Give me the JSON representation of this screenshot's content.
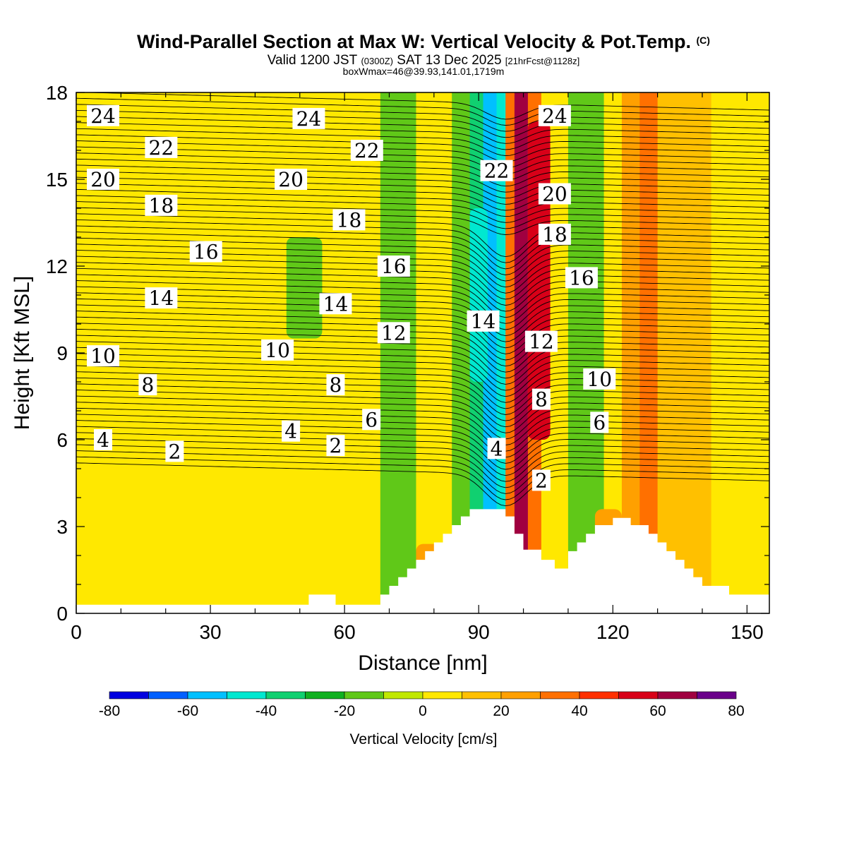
{
  "title": {
    "main": "Wind-Parallel Section at Max W: Vertical Velocity & Pot.Temp.",
    "copyright": "(C)",
    "valid_a": "Valid 1200 JST",
    "valid_utc": "(0300Z)",
    "valid_b": "SAT 13 Dec 2025",
    "forecast": "[21hrFcst@1128z]",
    "box": "boxWmax=46@39.93,141.01,1719m"
  },
  "chart_data": {
    "type": "heatmap",
    "title": "Wind-Parallel Section at Max W: Vertical Velocity & Pot.Temp.",
    "xlabel": "Distance [nm]",
    "ylabel": "Height [Kft MSL]",
    "xlim": [
      0,
      155
    ],
    "ylim": [
      0,
      18
    ],
    "xticks": [
      "0",
      "30",
      "60",
      "90",
      "120",
      "150"
    ],
    "yticks": [
      "0",
      "3",
      "6",
      "9",
      "12",
      "15",
      "18"
    ],
    "colorbar": {
      "label": "Vertical Velocity [cm/s]",
      "ticks": [
        "-80",
        "-60",
        "-40",
        "-20",
        "0",
        "20",
        "40",
        "60",
        "80"
      ],
      "bins": [
        -80,
        -70,
        -60,
        -50,
        -40,
        -30,
        -20,
        -10,
        0,
        10,
        20,
        30,
        40,
        50,
        60,
        70,
        80
      ],
      "colors": [
        "#0000e0",
        "#0060ff",
        "#00c0ff",
        "#00e8d0",
        "#10d070",
        "#10b020",
        "#60c818",
        "#c0e800",
        "#ffe800",
        "#ffc000",
        "#ffa000",
        "#ff7000",
        "#ff3000",
        "#d80018",
        "#a00040",
        "#6a008a"
      ]
    },
    "bands": [
      {
        "x": [
          0,
          24
        ],
        "w": 5
      },
      {
        "x": [
          24,
          38
        ],
        "w": 8
      },
      {
        "x": [
          38,
          48
        ],
        "w": 0
      },
      {
        "x": [
          48,
          58
        ],
        "w": 2
      },
      {
        "x": [
          58,
          68
        ],
        "w": 5
      },
      {
        "x": [
          68,
          76
        ],
        "w": -12
      },
      {
        "x": [
          76,
          84
        ],
        "w": 3
      },
      {
        "x": [
          84,
          88
        ],
        "w": -15
      },
      {
        "x": [
          88,
          91
        ],
        "w": -32
      },
      {
        "x": [
          91,
          94
        ],
        "w": -55
      },
      {
        "x": [
          94,
          96
        ],
        "w": -42
      },
      {
        "x": [
          96,
          98
        ],
        "w": 35
      },
      {
        "x": [
          98,
          101
        ],
        "w": 65
      },
      {
        "x": [
          101,
          104
        ],
        "w": 35
      },
      {
        "x": [
          104,
          110
        ],
        "w": 5
      },
      {
        "x": [
          110,
          118
        ],
        "w": -15
      },
      {
        "x": [
          118,
          122
        ],
        "w": 6
      },
      {
        "x": [
          122,
          126
        ],
        "w": 25
      },
      {
        "x": [
          126,
          130
        ],
        "w": 38
      },
      {
        "x": [
          130,
          142
        ],
        "w": 15
      },
      {
        "x": [
          142,
          155
        ],
        "w": 4
      }
    ],
    "patches": [
      {
        "x": [
          47,
          55
        ],
        "y": [
          9.5,
          13
        ],
        "w": -12
      },
      {
        "x": [
          101,
          106
        ],
        "y": [
          6,
          17
        ],
        "w": 55
      },
      {
        "x": [
          88,
          92
        ],
        "y": [
          8,
          14
        ],
        "w": -45
      },
      {
        "x": [
          40,
          50
        ],
        "y": [
          0.3,
          5
        ],
        "w": 7
      },
      {
        "x": [
          76,
          82
        ],
        "y": [
          1.5,
          2.4
        ],
        "w": 25
      },
      {
        "x": [
          116,
          122
        ],
        "y": [
          2.5,
          3.6
        ],
        "w": 22
      }
    ],
    "terrain": {
      "x": [
        0,
        52,
        52,
        58,
        58,
        68,
        68,
        70,
        70,
        72,
        72,
        74,
        74,
        76,
        76,
        78,
        78,
        80,
        80,
        82,
        82,
        84,
        84,
        86,
        86,
        88,
        88,
        90,
        90,
        92,
        92,
        96,
        96,
        98,
        98,
        100,
        100,
        104,
        104,
        107,
        107,
        110,
        110,
        112,
        112,
        114,
        114,
        116,
        116,
        118,
        118,
        120,
        120,
        122,
        122,
        124,
        124,
        128,
        128,
        130,
        130,
        132,
        132,
        134,
        134,
        136,
        136,
        138,
        138,
        140,
        140,
        142,
        142,
        144,
        144,
        146,
        146,
        148,
        148,
        152,
        152,
        154,
        155
      ],
      "y": [
        0.3,
        0.3,
        0.65,
        0.65,
        0.3,
        0.3,
        0.65,
        0.65,
        0.95,
        0.95,
        1.25,
        1.25,
        1.55,
        1.55,
        1.85,
        1.85,
        2.15,
        2.15,
        2.45,
        2.45,
        2.75,
        2.75,
        3.05,
        3.05,
        3.35,
        3.35,
        3.6,
        3.6,
        3.6,
        3.6,
        3.6,
        3.6,
        3.35,
        3.35,
        2.75,
        2.75,
        2.2,
        2.2,
        1.85,
        1.85,
        1.55,
        1.55,
        2.15,
        2.15,
        2.45,
        2.45,
        2.75,
        2.75,
        3.05,
        3.05,
        3.05,
        3.05,
        3.3,
        3.3,
        3.3,
        3.3,
        3.05,
        3.05,
        2.75,
        2.75,
        2.45,
        2.45,
        2.15,
        2.15,
        1.85,
        1.85,
        1.55,
        1.55,
        1.25,
        1.25,
        0.95,
        0.95,
        0.95,
        0.95,
        0.95,
        0.95,
        0.65,
        0.65,
        0.65,
        0.65,
        0.65,
        0.65,
        0.65
      ]
    },
    "isentropes": {
      "labels": [
        "2",
        "4",
        "6",
        "8",
        "10",
        "12",
        "14",
        "16",
        "18",
        "20",
        "22",
        "24"
      ],
      "label_points": [
        {
          "text": "24",
          "x": 6,
          "y": 17.2
        },
        {
          "text": "22",
          "x": 19,
          "y": 16.1
        },
        {
          "text": "20",
          "x": 6,
          "y": 15.0
        },
        {
          "text": "18",
          "x": 19,
          "y": 14.1
        },
        {
          "text": "16",
          "x": 29,
          "y": 12.5
        },
        {
          "text": "14",
          "x": 19,
          "y": 10.9
        },
        {
          "text": "10",
          "x": 6,
          "y": 8.9
        },
        {
          "text": "8",
          "x": 16,
          "y": 7.9
        },
        {
          "text": "4",
          "x": 6,
          "y": 6.0
        },
        {
          "text": "2",
          "x": 22,
          "y": 5.6
        },
        {
          "text": "24",
          "x": 52,
          "y": 17.1
        },
        {
          "text": "22",
          "x": 65,
          "y": 16.0
        },
        {
          "text": "20",
          "x": 48,
          "y": 15.0
        },
        {
          "text": "18",
          "x": 61,
          "y": 13.6
        },
        {
          "text": "16",
          "x": 71,
          "y": 12.0
        },
        {
          "text": "14",
          "x": 58,
          "y": 10.7
        },
        {
          "text": "12",
          "x": 71,
          "y": 9.7
        },
        {
          "text": "10",
          "x": 45,
          "y": 9.1
        },
        {
          "text": "8",
          "x": 58,
          "y": 7.9
        },
        {
          "text": "6",
          "x": 66,
          "y": 6.7
        },
        {
          "text": "4",
          "x": 48,
          "y": 6.3
        },
        {
          "text": "2",
          "x": 58,
          "y": 5.8
        },
        {
          "text": "22",
          "x": 94,
          "y": 15.3
        },
        {
          "text": "14",
          "x": 91,
          "y": 10.1
        },
        {
          "text": "4",
          "x": 94,
          "y": 5.7
        },
        {
          "text": "24",
          "x": 107,
          "y": 17.2
        },
        {
          "text": "20",
          "x": 107,
          "y": 14.5
        },
        {
          "text": "18",
          "x": 107,
          "y": 13.1
        },
        {
          "text": "12",
          "x": 104,
          "y": 9.4
        },
        {
          "text": "8",
          "x": 104,
          "y": 7.4
        },
        {
          "text": "2",
          "x": 104,
          "y": 4.6
        },
        {
          "text": "16",
          "x": 113,
          "y": 11.6
        },
        {
          "text": "10",
          "x": 117,
          "y": 8.1
        },
        {
          "text": "6",
          "x": 117,
          "y": 6.6
        }
      ]
    }
  }
}
